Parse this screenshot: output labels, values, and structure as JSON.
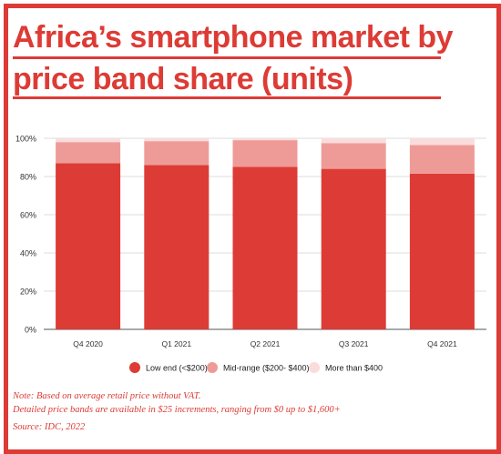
{
  "title": {
    "line1": "Africa’s smartphone market by",
    "line2": "price band share (units)"
  },
  "notes": {
    "line1": "Note: Based on average retail price without VAT.",
    "line2": "Detailed price bands are available in $25 increments, ranging from $0 up to $1,600+",
    "source": "Source: IDC, 2022"
  },
  "colors": {
    "accent": "#dd3b35",
    "low": "#dd3b35",
    "mid": "#ee9b98",
    "high": "#fadcdc",
    "grid": "#dddddd",
    "axis": "#333333"
  },
  "chart_data": {
    "type": "bar",
    "stacked": true,
    "categories": [
      "Q4 2020",
      "Q1 2021",
      "Q2 2021",
      "Q3 2021",
      "Q4 2021"
    ],
    "series": [
      {
        "name": "Low end (<$200)",
        "values": [
          87,
          86,
          85,
          84,
          81.5
        ]
      },
      {
        "name": "Mid-range ($200- $400)",
        "values": [
          11,
          12.5,
          14,
          13.5,
          15
        ]
      },
      {
        "name": "More than $400",
        "values": [
          2,
          1.5,
          1,
          2.5,
          3.5
        ]
      }
    ],
    "yticks": [
      "0%",
      "20%",
      "40%",
      "60%",
      "80%",
      "100%"
    ],
    "ylim": [
      0,
      100
    ],
    "legend_position": "bottom",
    "grid": true
  }
}
